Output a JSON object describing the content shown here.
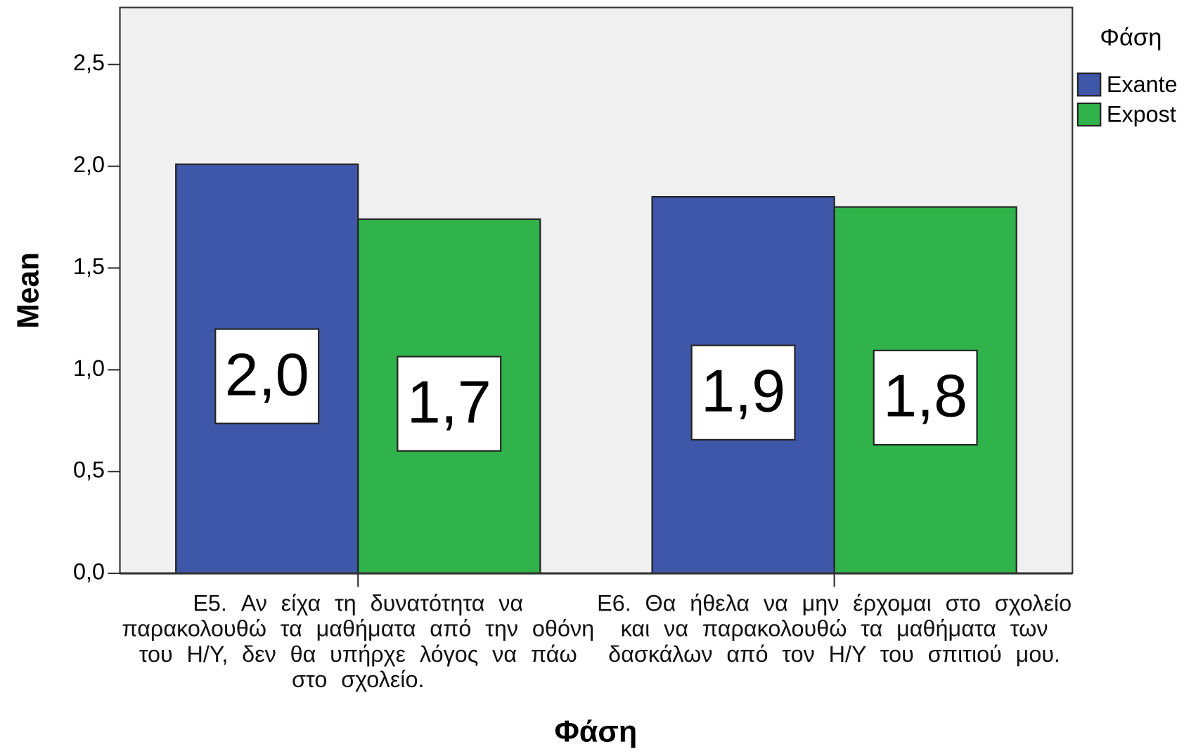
{
  "chart_data": {
    "type": "bar",
    "x_label": "Φάση",
    "y_label": "Mean",
    "legend_title": "Φάση",
    "legend": "right",
    "categories": [
      "E5. Αν είχα τη δυνατότητα να παρακολουθώ τα μαθήματα από την οθόνη του Η/Υ, δεν θα υπήρχε λόγος να πάω στο σχολείο.",
      "E6. Θα ήθελα να μην έρχομαι στο σχολείο και να παρακολουθώ τα μαθήματα των δασκάλων από τον Η/Υ του σπιτιού μου."
    ],
    "series": [
      {
        "name": "Exante",
        "color": "#3f57a8",
        "values": [
          2.01,
          1.85
        ],
        "value_labels": [
          "2,0",
          "1,9"
        ]
      },
      {
        "name": "Expost",
        "color": "#2fb34a",
        "values": [
          1.74,
          1.8
        ],
        "value_labels": [
          "1,7",
          "1,8"
        ]
      }
    ],
    "ylim": [
      0,
      2.78
    ],
    "yticks": [
      {
        "value": 0,
        "label": "0,0"
      },
      {
        "value": 0.5,
        "label": "0,5"
      },
      {
        "value": 1,
        "label": "1,0"
      },
      {
        "value": 1.5,
        "label": "1,5"
      },
      {
        "value": 2,
        "label": "2,0"
      },
      {
        "value": 2.5,
        "label": "2,5"
      }
    ]
  }
}
